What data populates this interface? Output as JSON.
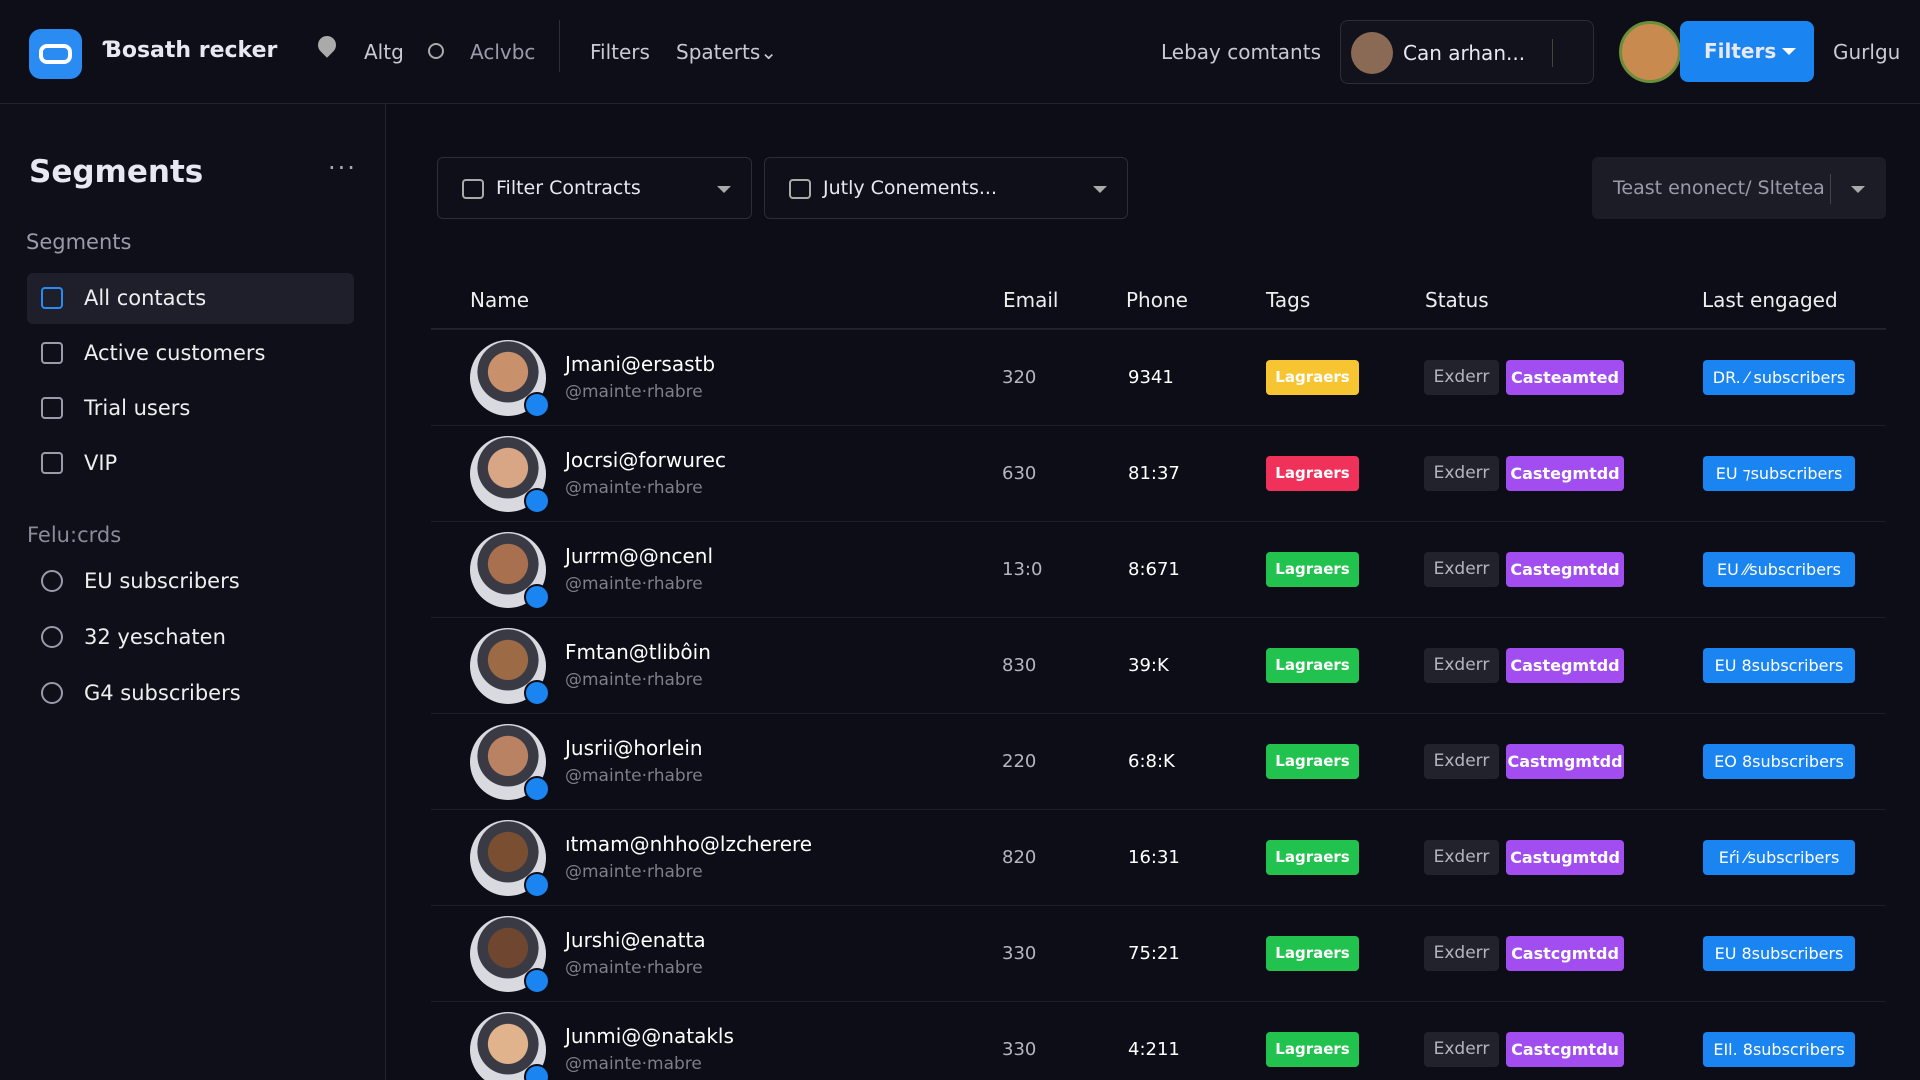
{
  "header": {
    "title": "Ɓosath recker",
    "nav": [
      "Altg",
      "Aclvbc",
      "Filters",
      "Spaterts⌄"
    ],
    "link": "Lebay comtants",
    "user": "Can arhan...",
    "button": "Filters",
    "extra": "Gurlgu"
  },
  "sidebar": {
    "title": "Segments",
    "section1": "Segments",
    "items1": [
      "All contacts",
      "Active customers",
      "Trial users",
      "VIP"
    ],
    "section2": "Felu:crds",
    "items2": [
      "EU subscribers",
      "32 yeschaten",
      "G4 subscribers"
    ]
  },
  "filters": [
    "Filter Contracts",
    "Jutly Conements...",
    "Teast enonect/ Sltetea"
  ],
  "table": {
    "columns": [
      "Name",
      "Email",
      "Phone",
      "Tags",
      "Status",
      "Last engaged"
    ],
    "rows": [
      {
        "name": "Jmani@ersastb",
        "handle": "@mainte·rhabre",
        "email": "320",
        "phone": "9341",
        "tag": "Lagraers",
        "tag_color": "#f7c531",
        "status": "Exderr",
        "state": "Casteamted",
        "segment": "DR. ⁄ subscribers"
      },
      {
        "name": "Jocrsi@forwurec",
        "handle": "@mainte·rhabre",
        "email": "630",
        "phone": "81:37",
        "tag": "Lagraers",
        "tag_color": "#f0315a",
        "status": "Exderr",
        "state": "Castegmtdd",
        "segment": "EU ⁊subscribers"
      },
      {
        "name": "Jurrm@@ncenl",
        "handle": "@mainte·rhabre",
        "email": "13:0",
        "phone": "8:671",
        "tag": "Lagraers",
        "tag_color": "#22c24f",
        "status": "Exderr",
        "state": "Castegmtdd",
        "segment": "EU ⁄⁄subscribers"
      },
      {
        "name": "Fmtan@tlibôin",
        "handle": "@mainte·rhabre",
        "email": "830",
        "phone": "39:K",
        "tag": "Lagraers",
        "tag_color": "#22c24f",
        "status": "Exderr",
        "state": "Castegmtdd",
        "segment": "EU 8subscribers"
      },
      {
        "name": "Jusrii@horlein",
        "handle": "@mainte·rhabre",
        "email": "220",
        "phone": "6:8:K",
        "tag": "Lagraers",
        "tag_color": "#22c24f",
        "status": "Exderr",
        "state": "Castmgmtdd",
        "segment": "EO 8subscribers"
      },
      {
        "name": "ıtmam@nhho@lzcherere",
        "handle": "@mainte·rhabre",
        "email": "820",
        "phone": "16:31",
        "tag": "Lagraers",
        "tag_color": "#22c24f",
        "status": "Exderr",
        "state": "Castugmtdd",
        "segment": "Eŕi ⁄subscribers"
      },
      {
        "name": "Jurshi@enatta",
        "handle": "@mainte·rhabre",
        "email": "330",
        "phone": "75:21",
        "tag": "Lagraers",
        "tag_color": "#22c24f",
        "status": "Exderr",
        "state": "Castcgmtdd",
        "segment": "EU 8subscribers"
      },
      {
        "name": "Junmi@@natakls",
        "handle": "@mainte·mabre",
        "email": "330",
        "phone": "4:211",
        "tag": "Lagraers",
        "tag_color": "#22c24f",
        "status": "Exderr",
        "state": "Castcgmtdu",
        "segment": "EIl. 8subscribers"
      }
    ]
  }
}
